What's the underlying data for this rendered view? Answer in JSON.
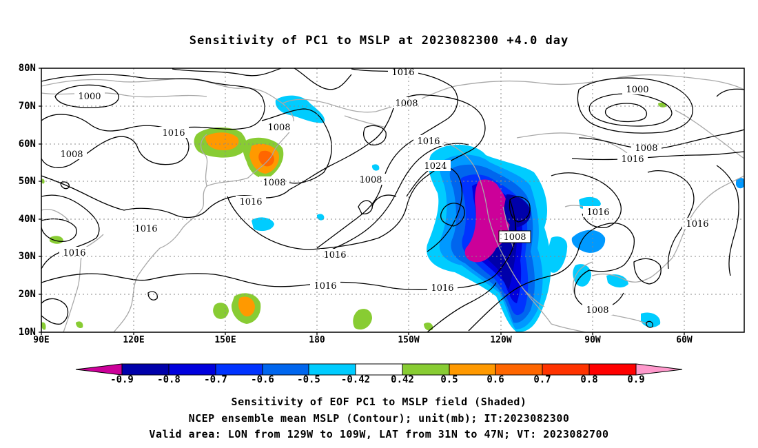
{
  "title": "Sensitivity of PC1 to MSLP at 2023082300 +4.0 day",
  "lat_labels": [
    "80N",
    "70N",
    "60N",
    "50N",
    "40N",
    "30N",
    "20N",
    "10N"
  ],
  "lon_labels": [
    "90E",
    "120E",
    "150E",
    "180",
    "150W",
    "120W",
    "90W",
    "60W"
  ],
  "colorbar": {
    "labels": [
      "-0.9",
      "-0.8",
      "-0.7",
      "-0.6",
      "-0.5",
      "-0.42",
      "0.42",
      "0.5",
      "0.6",
      "0.7",
      "0.8",
      "0.9"
    ],
    "colors": [
      "#cc0099",
      "#0000aa",
      "#0000dd",
      "#0033ff",
      "#0066ee",
      "#0099ff",
      "#00ccff",
      "#ffffff",
      "#88cc33",
      "#ff9900",
      "#ff6600",
      "#ff3300",
      "#ff0000",
      "#ff99cc"
    ]
  },
  "contour_labels": [
    "1000",
    "1016",
    "1008",
    "1016",
    "1008",
    "1000",
    "1016",
    "1008",
    "1008",
    "1016",
    "1024",
    "1008",
    "1008",
    "1016",
    "1016",
    "1016",
    "1016",
    "1008",
    "1016",
    "1016",
    "1016",
    "1008"
  ],
  "captions": {
    "line1": "Sensitivity of EOF PC1 to MSLP field (Shaded)",
    "line2": "NCEP ensemble mean MSLP (Contour); unit(mb); IT:2023082300",
    "line3": "Valid area: LON from 129W to 109W, LAT from 31N to 47N; VT: 2023082700"
  }
}
